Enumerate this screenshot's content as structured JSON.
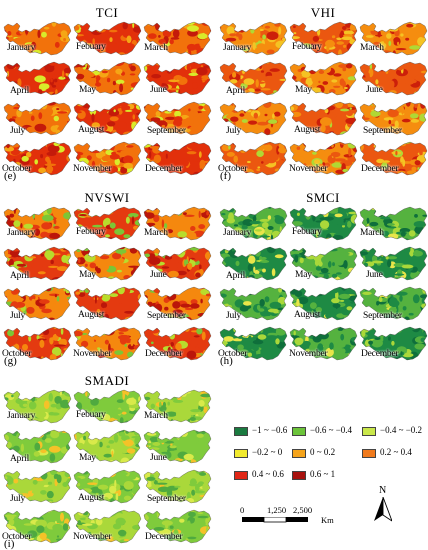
{
  "panels": [
    {
      "id": "e",
      "title": "TCI",
      "letter": "(e)",
      "palette": [
        "#e2300b",
        "#f2720b",
        "#c41a0a",
        "#f5a615",
        "#d9eb2a"
      ]
    },
    {
      "id": "f",
      "title": "VHI",
      "letter": "(f)",
      "palette": [
        "#eb5710",
        "#f58d0f",
        "#cc1f0a",
        "#f5c323",
        "#b0d834"
      ]
    },
    {
      "id": "g",
      "title": "NVSWI",
      "letter": "(g)",
      "palette": [
        "#e43a10",
        "#f5880e",
        "#bb160a",
        "#b9dc2c",
        "#7cc635"
      ]
    },
    {
      "id": "h",
      "title": "SMCI",
      "letter": "(h)",
      "palette": [
        "#1e8a44",
        "#55b23f",
        "#0f6f3b",
        "#aad83a",
        "#e8e54a"
      ]
    },
    {
      "id": "i",
      "title": "SMADI",
      "letter": "(i)",
      "palette": [
        "#7fcb3c",
        "#aad83a",
        "#4faa3f",
        "#d9ea4a",
        "#f5c228"
      ]
    }
  ],
  "months": [
    "January",
    "Febuary",
    "March",
    "April",
    "May",
    "June",
    "July",
    "August",
    "September",
    "October",
    "November",
    "December"
  ],
  "legend": [
    {
      "label": "−1 ~ −0.6",
      "color": "#1a7a40"
    },
    {
      "label": "−0.6 ~ −0.4",
      "color": "#6cc43a"
    },
    {
      "label": "−0.4 ~ −0.2",
      "color": "#c9e74a"
    },
    {
      "label": "−0.2 ~ 0",
      "color": "#f2ea2e"
    },
    {
      "label": "0 ~ 0.2",
      "color": "#f5a41b"
    },
    {
      "label": "0.2 ~ 0.4",
      "color": "#f07a1d"
    },
    {
      "label": "0.4 ~ 0.6",
      "color": "#e02616"
    },
    {
      "label": "0.6 ~ 1",
      "color": "#a8120e"
    }
  ],
  "scale_bar": {
    "labels": [
      "0",
      "1,250",
      "2,500"
    ],
    "unit": "Km"
  },
  "north_arrow": {
    "label": "N"
  }
}
